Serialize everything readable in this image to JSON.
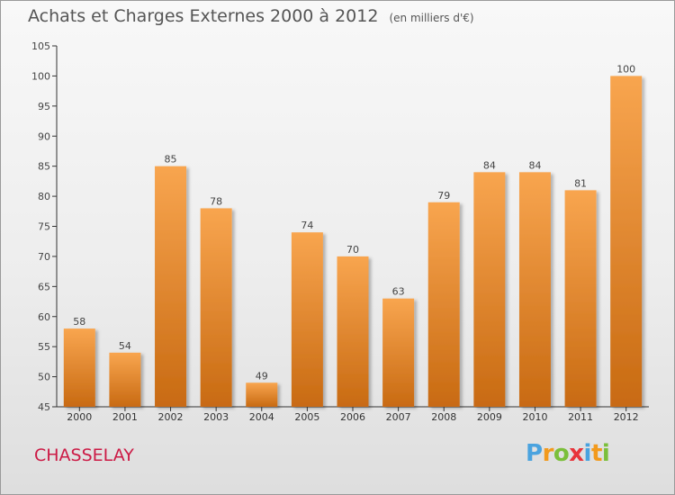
{
  "title": "Achats et Charges Externes 2000 à 2012",
  "unit_note": "(en milliers d'€)",
  "commune": "CHASSELAY",
  "logo": {
    "letters": [
      "P",
      "r",
      "o",
      "x",
      "i",
      "t",
      "i"
    ],
    "colors": [
      "#4aa3df",
      "#f29a1d",
      "#7bbf3a",
      "#e8343a",
      "#4aa3df",
      "#f29a1d",
      "#7bbf3a"
    ]
  },
  "colors": {
    "bar_light": "#f8a54f",
    "bar_dark": "#c86a12",
    "title": "#555555",
    "commune": "#cc1a45"
  },
  "chart_data": {
    "type": "bar",
    "categories": [
      "2000",
      "2001",
      "2002",
      "2003",
      "2004",
      "2005",
      "2006",
      "2007",
      "2008",
      "2009",
      "2010",
      "2011",
      "2012"
    ],
    "values": [
      58,
      54,
      85,
      78,
      49,
      74,
      70,
      63,
      79,
      84,
      84,
      81,
      100
    ],
    "data_labels": [
      "58",
      "54",
      "85",
      "78",
      "49",
      "74",
      "70",
      "63",
      "79",
      "84",
      "84",
      "81",
      "100"
    ],
    "ylim": [
      45,
      105
    ],
    "yticks": [
      45,
      50,
      55,
      60,
      65,
      70,
      75,
      80,
      85,
      90,
      95,
      100,
      105
    ],
    "grid": false
  }
}
